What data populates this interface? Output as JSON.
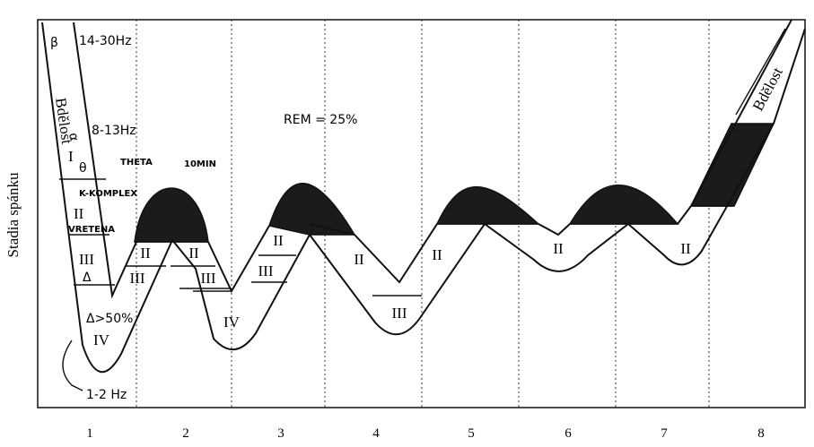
{
  "y_axis_label": "Stadia spánku",
  "x_axis_labels": [
    1,
    2,
    3,
    4,
    5,
    6,
    7,
    8
  ],
  "annotations": {
    "beta": "β",
    "beta_freq": "14-30Hz",
    "wake_left": "Bdělost",
    "alpha": "α",
    "alpha_freq": "8-13Hz",
    "stage1": "I",
    "theta": "θ",
    "theta_text": "THETA",
    "k_complex": "K-KOMPLEX",
    "stage2": "II",
    "spindles": "VRETENA",
    "stage3": "III",
    "delta": "Δ",
    "delta_pct": "Δ>50%",
    "stage4": "IV",
    "delta_freq": "1-2 Hz",
    "ten_min": "10MIN",
    "rem": "REM = 25%",
    "wake_right": "Bdělost"
  },
  "stage_labels": [
    "II",
    "II",
    "III",
    "III",
    "IV",
    "II",
    "III",
    "II",
    "III",
    "II",
    "II",
    "II"
  ]
}
